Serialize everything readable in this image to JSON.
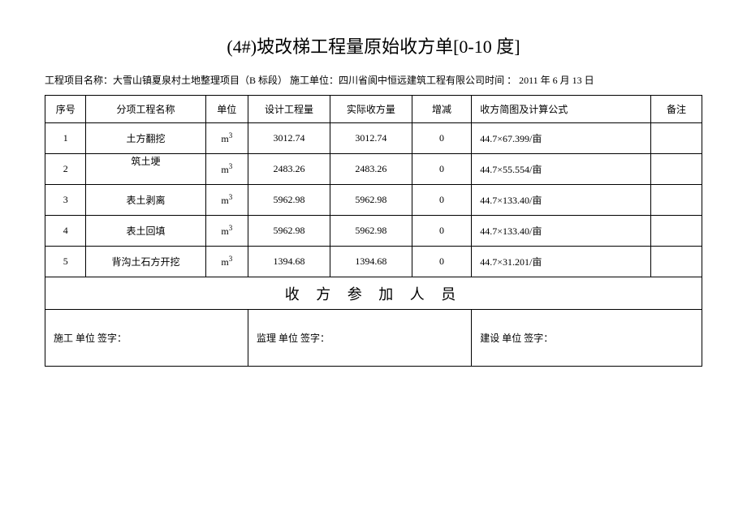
{
  "title": "(4#)坡改梯工程量原始收方单[0-10 度]",
  "subtitle": {
    "project_label": "工程项目名称：",
    "project_name": "大雪山镇夏泉村土地整理项目（B 标段）",
    "construction_label": " 施工单位：",
    "construction_unit": "四川省阆中恒远建筑工程有限公司",
    "time_label": "时间 ：",
    "time_value": " 2011 年 6 月 13 日"
  },
  "headers": {
    "seq": "序号",
    "name": "分项工程名称",
    "unit": "单位",
    "design": "设计工程量",
    "actual": "实际收方量",
    "diff": "增减",
    "formula": "收方简图及计算公式",
    "remark": "备注"
  },
  "unit_text": "m",
  "unit_sup": "3",
  "rows": [
    {
      "seq": "1",
      "name": "土方翻挖",
      "design": "3012.74",
      "actual": "3012.74",
      "diff": "0",
      "formula": "44.7×67.399/亩",
      "remark": ""
    },
    {
      "seq": "2",
      "name": "筑土埂",
      "design": "2483.26",
      "actual": "2483.26",
      "diff": "0",
      "formula": "44.7×55.554/亩",
      "remark": ""
    },
    {
      "seq": "3",
      "name": "表土剥离",
      "design": "5962.98",
      "actual": "5962.98",
      "diff": "0",
      "formula": "44.7×133.40/亩",
      "remark": ""
    },
    {
      "seq": "4",
      "name": "表土回填",
      "design": "5962.98",
      "actual": "5962.98",
      "diff": "0",
      "formula": "44.7×133.40/亩",
      "remark": ""
    },
    {
      "seq": "5",
      "name": "背沟土石方开挖",
      "design": "1394.68",
      "actual": "1394.68",
      "diff": "0",
      "formula": "44.7×31.201/亩",
      "remark": ""
    }
  ],
  "section_header": "收 方 参 加 人 员",
  "signatures": {
    "construction": "施工  单位  签字：",
    "supervision": "监理  单位  签字：",
    "client": "建设  单位  签字："
  }
}
